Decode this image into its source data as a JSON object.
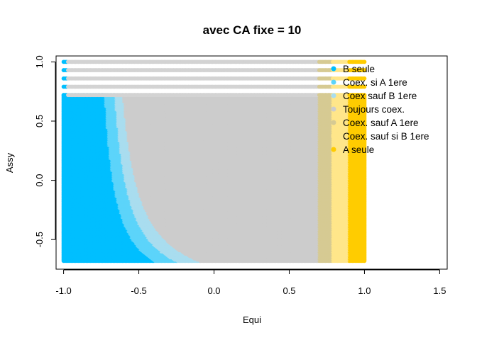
{
  "chart_data": {
    "type": "scatter",
    "title": "avec CA fixe = 10",
    "xlabel": "Equi",
    "ylabel": "Assy",
    "xlim": [
      -1.05,
      1.55
    ],
    "ylim": [
      -0.75,
      1.05
    ],
    "x_ticks": [
      -1.0,
      -0.5,
      0.0,
      0.5,
      1.0,
      1.5
    ],
    "x_tick_labels": [
      "-1.0",
      "-0.5",
      "0.0",
      "0.5",
      "1.0",
      "1.5"
    ],
    "y_ticks": [
      -0.5,
      0.0,
      0.5,
      1.0
    ],
    "y_tick_labels": [
      "-0.5",
      "0.0",
      "0.5",
      "1.0"
    ],
    "grid": false,
    "legend_position": "top-right",
    "x_range": [
      -1.0,
      1.0
    ],
    "x_step": 0.01,
    "y_range": [
      -0.68,
      1.0
    ],
    "y_step": 0.01,
    "region_rule": {
      "vertical_bands": [
        {
          "x_min": 0.7,
          "x_max": 0.78,
          "category": "Coex. sauf A 1ere"
        },
        {
          "x_min": 0.78,
          "x_max": 0.89,
          "category": "Coex. sauf si B 1ere"
        },
        {
          "x_min": 0.89,
          "x_max": 1.0,
          "category": "A seule"
        }
      ],
      "curve_bands": [
        {
          "category": "B seule",
          "coef": 0.13,
          "offset": -0.8
        },
        {
          "category": "Coex. si A 1ere",
          "coef": 0.16,
          "offset": -0.75
        },
        {
          "category": "Coex sauf B 1ere",
          "coef": 0.2,
          "offset": -0.72
        }
      ],
      "default": "Toujours coex."
    },
    "series": [
      {
        "name": "B seule",
        "color": "#00BFFF"
      },
      {
        "name": "Coex. si A 1ere",
        "color": "#5CD4FA"
      },
      {
        "name": "Coex sauf B 1ere",
        "color": "#A9DDEF"
      },
      {
        "name": "Toujours coex.",
        "color": "#CCCCCC"
      },
      {
        "name": "Coex. sauf A 1ere",
        "color": "#D6CA93"
      },
      {
        "name": "Coex. sauf si B 1ere",
        "color": "#FFE68A"
      },
      {
        "name": "A seule",
        "color": "#FFCC00"
      }
    ],
    "sparse_rows_above": 0.72,
    "sparse_row_values": [
      1.0,
      0.93,
      0.86,
      0.79,
      0.72
    ],
    "point_color_sparse_rows": "#D3D3D3"
  }
}
